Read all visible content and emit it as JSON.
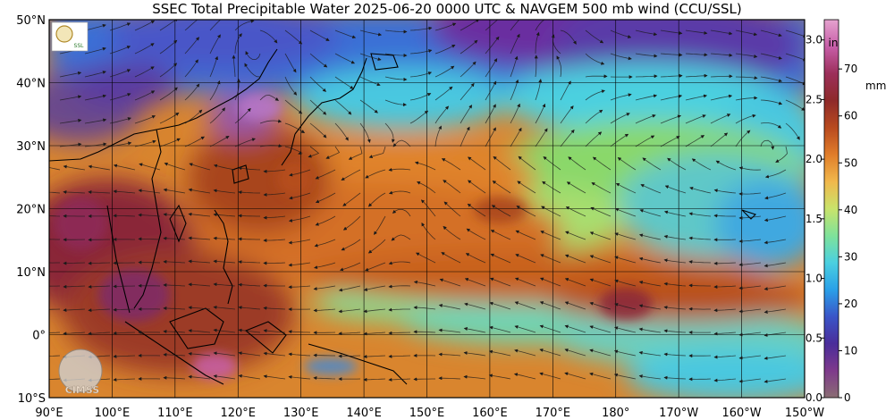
{
  "title": "SSEC Total Precipitable Water  2025-06-20 0000 UTC & NAVGEM 500 mb wind (CCU/SSL)",
  "map": {
    "lon_range": [
      90,
      210
    ],
    "lat_range": [
      -10,
      50
    ],
    "lat_labels": [
      "50°N",
      "40°N",
      "30°N",
      "20°N",
      "10°N",
      "0°",
      "10°S"
    ],
    "lon_labels": [
      "90°E",
      "100°E",
      "110°E",
      "120°E",
      "130°E",
      "140°E",
      "150°E",
      "160°E",
      "170°E",
      "180°",
      "170°W",
      "160°W",
      "150°W"
    ]
  },
  "colorbar": {
    "inches_unit": "in",
    "mm_unit": "mm",
    "inches_labels": [
      "3.0",
      "2.5",
      "2.0",
      "1.5",
      "1.0",
      "0.5",
      "0.0"
    ],
    "mm_labels": [
      "70",
      "60",
      "50",
      "40",
      "30",
      "20",
      "10",
      "0"
    ],
    "gradient": [
      "#8a6d73",
      "#7e3a8c",
      "#4a2d9a",
      "#3a55c8",
      "#2aa0e8",
      "#4bd0e0",
      "#7fe29a",
      "#c9e36b",
      "#f1b84c",
      "#e07d2a",
      "#b84a1f",
      "#8e2a2a",
      "#9c2f5a",
      "#c75ea8",
      "#e6a3cf"
    ]
  },
  "logos": {
    "ccu_text": "SSL",
    "cimss_text": "CIMSS"
  },
  "colors": {
    "dry_purple": "#5a2d8c",
    "dry_blue": "#3a6fd6",
    "mid_cyan": "#48c8e0",
    "mid_green": "#8ad86a",
    "moist_orange": "#e08a34",
    "wet_brown": "#a8451e",
    "vwet_maroon": "#8a2838"
  }
}
